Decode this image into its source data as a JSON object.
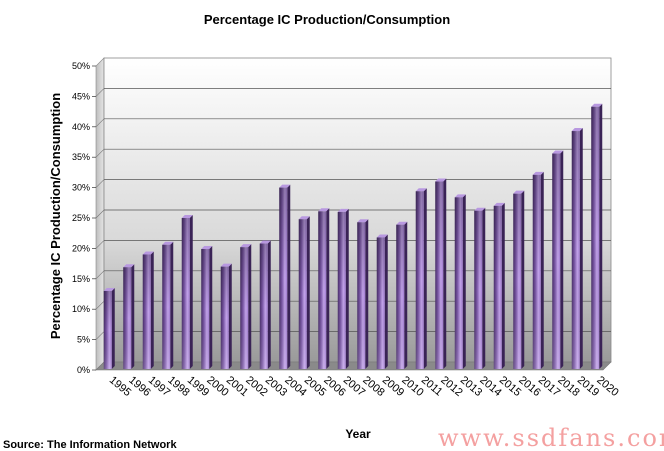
{
  "chart_data": {
    "type": "bar",
    "title": "Percentage IC Production/Consumption",
    "xlabel": "Year",
    "ylabel": "Percentage IC Production/Consumption",
    "ylim": [
      0,
      50
    ],
    "y_tick_values": [
      0,
      5,
      10,
      15,
      20,
      25,
      30,
      35,
      40,
      45,
      50
    ],
    "y_tick_suffix": "%",
    "grid": true,
    "categories": [
      "1995",
      "1996",
      "1997",
      "1998",
      "1999",
      "2000",
      "2001",
      "2002",
      "2003",
      "2004",
      "2005",
      "2006",
      "2007",
      "2008",
      "2009",
      "2010",
      "2011",
      "2012",
      "2013",
      "2014",
      "2015",
      "2016",
      "2017",
      "2018",
      "2019",
      "2020"
    ],
    "values": [
      13,
      16.9,
      19,
      20.6,
      25,
      19.9,
      17,
      20.2,
      20.8,
      30,
      24.8,
      26.1,
      26,
      24.3,
      21.8,
      23.9,
      29.4,
      31,
      28.4,
      26.2,
      27,
      29,
      32.1,
      35.6,
      39.3,
      43.3
    ],
    "bar_color": "#8e67b8"
  },
  "source": "Source: The Information Network",
  "watermark": "www.ssdfans.com"
}
